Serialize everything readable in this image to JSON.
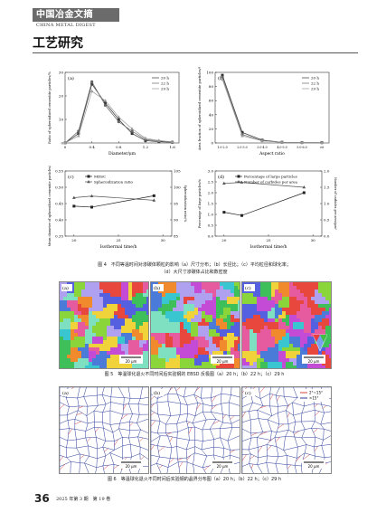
{
  "header": {
    "journal_cn": "中国冶金文摘",
    "journal_en": "CHINA METAL DIGEST",
    "section": "工艺研究"
  },
  "figure4": {
    "caption_line1": "图 4　不同等温时间对渗碳体颗粒的影响（a）尺寸分布；（b）长径比；（c）平均粒径和球化率；",
    "caption_line2": "（d）大尺寸渗碳体占比和数密度",
    "panels": {
      "a": "(a)",
      "b": "(b)",
      "c": "(c)",
      "d": "(d)"
    }
  },
  "chart_data": [
    {
      "type": "line",
      "panel": "(a)",
      "xlabel": "Diameter/μm",
      "ylabel": "Ratio of spheroidized cementite particles/%",
      "x": [
        0,
        0.2,
        0.4,
        0.6,
        0.8,
        1.0,
        1.2,
        1.4,
        1.6
      ],
      "xticks": [
        "0",
        "0.4",
        "0.8",
        "1.2",
        "1.6"
      ],
      "yticks": [
        "0",
        "10",
        "20",
        "30"
      ],
      "xlim": [
        0,
        1.7
      ],
      "ylim": [
        0,
        30
      ],
      "series": [
        {
          "name": "20 h",
          "values": [
            0,
            4,
            25,
            17,
            10,
            4,
            1,
            0.5,
            0.3
          ]
        },
        {
          "name": "22 h",
          "values": [
            0,
            5,
            26,
            16,
            9,
            5,
            1.5,
            0.8,
            0.3
          ]
        },
        {
          "name": "29 h",
          "values": [
            0,
            3,
            22,
            18,
            11,
            6,
            2,
            1,
            0.5
          ]
        }
      ],
      "legend": "top-right"
    },
    {
      "type": "line",
      "panel": "(b)",
      "xlabel": "Aspect ratio",
      "ylabel": "Area fraction of spheroidized cementite particles/%",
      "categories": [
        "1.0-2.0",
        "2.0-3.0",
        "3.0-4.0",
        "4.0-5.0",
        "5.0-6.0",
        ">6"
      ],
      "yticks": [
        "0",
        "20",
        "40",
        "60",
        "80",
        "100"
      ],
      "ylim": [
        0,
        100
      ],
      "series": [
        {
          "name": "20 h",
          "values": [
            96,
            15,
            4,
            1,
            0.5,
            0.5
          ]
        },
        {
          "name": "22 h",
          "values": [
            93,
            12,
            3,
            1,
            0.5,
            0.3
          ]
        },
        {
          "name": "29 h",
          "values": [
            90,
            10,
            3,
            1,
            0.5,
            0.3
          ]
        }
      ],
      "legend": "top-right"
    },
    {
      "type": "line",
      "panel": "(c)",
      "xlabel": "Isothermal time/h",
      "ylabel": "Mean diameter of spheroidized cementite particles/μm",
      "y2label": "Spheroidization ratio/%",
      "x": [
        20,
        22,
        29
      ],
      "xticks": [
        "20",
        "25",
        "30"
      ],
      "yticks": [
        "0.35",
        "0.40",
        "0.45",
        "0.50",
        "0.55"
      ],
      "y2ticks": [
        "85",
        "90",
        "95",
        "100",
        "105"
      ],
      "ylim": [
        0.35,
        0.55
      ],
      "y2lim": [
        85,
        105
      ],
      "series": [
        {
          "name": "MDSC",
          "values": [
            0.442,
            0.439,
            0.474
          ],
          "axis": "left"
        },
        {
          "name": "Spheroidization ratio",
          "values": [
            96.8,
            97.3,
            96.0
          ],
          "axis": "right"
        }
      ],
      "legend": "top-left"
    },
    {
      "type": "line",
      "panel": "(d)",
      "xlabel": "Isothermal time/h",
      "ylabel": "Percentage of large particles/%",
      "y2label": "Number of carbides per area/μm²",
      "x": [
        20,
        22,
        29
      ],
      "xticks": [
        "20",
        "25",
        "30"
      ],
      "yticks": [
        "0.0",
        "0.5",
        "1.0",
        "1.5",
        "2.0",
        "2.5",
        "3.0"
      ],
      "y2ticks": [
        "0.0",
        "0.5",
        "1.0",
        "1.5",
        "2.0"
      ],
      "ylim": [
        0,
        3
      ],
      "y2lim": [
        0,
        2
      ],
      "series": [
        {
          "name": "Percentage of large particles",
          "values": [
            1.1,
            0.95,
            2.0
          ],
          "axis": "left"
        },
        {
          "name": "Number of carbides per area",
          "values": [
            1.62,
            1.65,
            1.5
          ],
          "axis": "right"
        }
      ],
      "legend": "top-left"
    }
  ],
  "figure5": {
    "labels": [
      "(a)",
      "(b)",
      "(c)"
    ],
    "scale": "20 μm",
    "caption": "图 5　等温球化退火不同时间后实验钢的 EBSD 反极图（a）20 h；（b）22 h；（c）29 h"
  },
  "figure6": {
    "labels": [
      "(a)",
      "(b)",
      "(c)"
    ],
    "scale": "20 μm",
    "legend": [
      "2°~15°",
      ">15°"
    ],
    "caption": "图 6　等温球化退火不同时间后实验钢的晶界分布图（a）20 h；（b）22 h；（c）29 h"
  },
  "footer": {
    "page": "36",
    "issue": "2025 年第 3 期　第 19 卷"
  }
}
